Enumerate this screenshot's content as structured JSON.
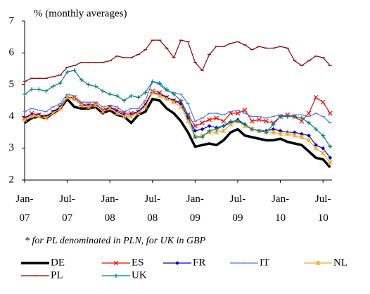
{
  "chart_data": {
    "type": "line",
    "title": "% (monthly averages)",
    "note": "* for PL denominated in PLN, for UK in GBP",
    "categories": [
      "Jan-\n07",
      null,
      null,
      null,
      null,
      null,
      "Jul-\n07",
      null,
      null,
      null,
      null,
      null,
      "Jan-\n08",
      null,
      null,
      null,
      null,
      null,
      "Jul-\n08",
      null,
      null,
      null,
      null,
      null,
      "Jan-\n09",
      null,
      null,
      null,
      null,
      null,
      "Jul-\n09",
      null,
      null,
      null,
      null,
      null,
      "Jan-\n10",
      null,
      null,
      null,
      null,
      null,
      "Jul-\n10",
      null
    ],
    "ylim": [
      2,
      7
    ],
    "yticks": [
      2,
      3,
      4,
      5,
      6,
      7
    ],
    "series": [
      {
        "name": "DE",
        "color": "#000000",
        "marker": "none",
        "width": 3.5,
        "values": [
          3.8,
          3.95,
          4.0,
          3.95,
          4.1,
          4.25,
          4.55,
          4.3,
          4.25,
          4.25,
          4.3,
          4.1,
          4.2,
          4.05,
          4.0,
          3.8,
          4.05,
          4.15,
          4.55,
          4.5,
          4.25,
          4.1,
          3.85,
          3.5,
          3.05,
          3.1,
          3.15,
          3.1,
          3.25,
          3.5,
          3.6,
          3.4,
          3.35,
          3.3,
          3.25,
          3.25,
          3.3,
          3.2,
          3.15,
          3.1,
          2.9,
          2.7,
          2.65,
          2.4
        ]
      },
      {
        "name": "ES",
        "color": "#ff0000",
        "marker": "x",
        "width": 1.2,
        "values": [
          3.95,
          4.1,
          4.05,
          4.0,
          4.15,
          4.3,
          4.6,
          4.6,
          4.4,
          4.35,
          4.4,
          4.2,
          4.3,
          4.2,
          4.1,
          4.1,
          4.15,
          4.4,
          4.8,
          4.75,
          4.6,
          4.5,
          4.45,
          4.05,
          3.7,
          3.8,
          3.9,
          3.95,
          3.85,
          4.1,
          4.1,
          4.2,
          3.85,
          3.9,
          3.85,
          3.8,
          4.0,
          4.05,
          4.0,
          3.85,
          4.1,
          4.6,
          4.45,
          4.1
        ]
      },
      {
        "name": "FR",
        "color": "#0000cc",
        "marker": "dot",
        "width": 1.2,
        "values": [
          3.95,
          4.05,
          4.05,
          4.0,
          4.15,
          4.3,
          4.6,
          4.55,
          4.35,
          4.35,
          4.35,
          4.15,
          4.3,
          4.15,
          4.05,
          4.05,
          4.15,
          4.35,
          4.75,
          4.7,
          4.6,
          4.5,
          4.4,
          3.95,
          3.55,
          3.6,
          3.7,
          3.65,
          3.7,
          3.8,
          3.9,
          3.75,
          3.6,
          3.55,
          3.55,
          3.6,
          3.55,
          3.5,
          3.5,
          3.45,
          3.4,
          3.1,
          3.0,
          2.7
        ]
      },
      {
        "name": "IT",
        "color": "#4a7fe0",
        "marker": "dash",
        "width": 1.2,
        "values": [
          4.15,
          4.25,
          4.2,
          4.15,
          4.3,
          4.4,
          4.7,
          4.65,
          4.45,
          4.45,
          4.45,
          4.3,
          4.35,
          4.3,
          4.15,
          4.25,
          4.25,
          4.5,
          5.1,
          5.0,
          4.8,
          4.75,
          4.7,
          4.4,
          3.85,
          3.95,
          4.1,
          4.1,
          4.05,
          4.15,
          4.2,
          4.1,
          4.0,
          4.0,
          3.95,
          4.0,
          4.05,
          4.0,
          4.05,
          4.05,
          4.0,
          4.1,
          4.0,
          3.8
        ]
      },
      {
        "name": "NL",
        "color": "#f5a623",
        "marker": "star",
        "width": 1.2,
        "values": [
          3.9,
          4.0,
          4.0,
          3.95,
          4.1,
          4.25,
          4.6,
          4.55,
          4.35,
          4.3,
          4.35,
          4.15,
          4.25,
          4.1,
          4.0,
          4.0,
          4.1,
          4.3,
          4.75,
          4.65,
          4.55,
          4.45,
          4.3,
          3.85,
          3.35,
          3.4,
          3.5,
          3.5,
          3.55,
          3.75,
          3.85,
          3.7,
          3.6,
          3.55,
          3.5,
          3.5,
          3.45,
          3.45,
          3.4,
          3.35,
          3.25,
          3.0,
          2.85,
          2.55
        ]
      },
      {
        "name": "PL",
        "color": "#8b0000",
        "marker": "dash",
        "width": 1.2,
        "values": [
          5.1,
          5.2,
          5.2,
          5.2,
          5.25,
          5.3,
          5.55,
          5.6,
          5.7,
          5.7,
          5.7,
          5.7,
          5.75,
          5.9,
          5.85,
          5.85,
          5.95,
          6.1,
          6.4,
          6.4,
          6.15,
          5.85,
          6.4,
          6.35,
          5.7,
          5.45,
          5.95,
          6.2,
          6.2,
          6.3,
          6.35,
          6.25,
          6.1,
          6.2,
          6.15,
          6.15,
          6.2,
          6.15,
          5.75,
          5.6,
          5.75,
          5.9,
          5.85,
          5.6
        ]
      },
      {
        "name": "UK",
        "color": "#008080",
        "marker": "plus",
        "width": 1.2,
        "values": [
          4.7,
          4.85,
          4.85,
          4.8,
          4.95,
          5.05,
          5.4,
          5.45,
          5.15,
          5.0,
          4.95,
          4.8,
          4.7,
          4.65,
          4.5,
          4.65,
          4.6,
          4.75,
          5.1,
          5.05,
          4.85,
          4.7,
          4.5,
          4.05,
          3.35,
          3.35,
          3.55,
          3.6,
          3.7,
          3.85,
          3.85,
          3.75,
          3.6,
          3.55,
          3.5,
          3.75,
          4.0,
          4.0,
          4.0,
          3.95,
          3.8,
          3.6,
          3.4,
          3.05
        ]
      }
    ]
  }
}
